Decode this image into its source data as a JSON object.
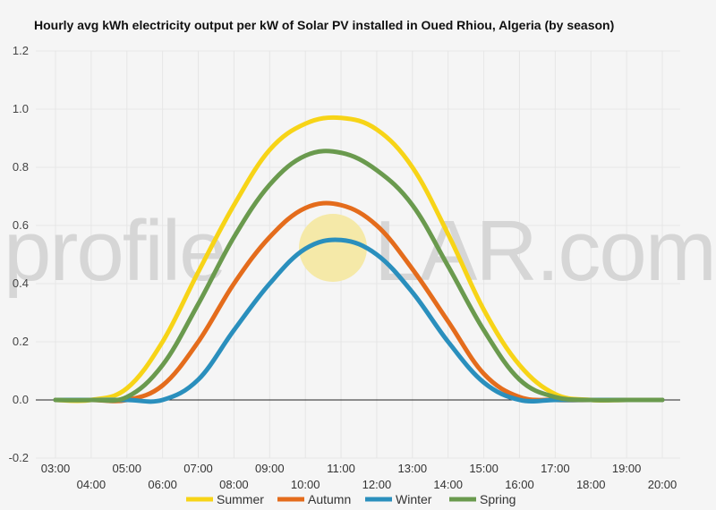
{
  "watermark": {
    "left": "profile",
    "right": "LAR.com",
    "sun_color": "#f5e9a8"
  },
  "chart_data": {
    "type": "line",
    "title": "Hourly avg kWh electricity output per kW of Solar PV installed in Oued Rhiou, Algeria (by season)",
    "xlabel": "",
    "ylabel": "",
    "categories": [
      "03:00",
      "04:00",
      "05:00",
      "06:00",
      "07:00",
      "08:00",
      "09:00",
      "10:00",
      "11:00",
      "12:00",
      "13:00",
      "14:00",
      "15:00",
      "16:00",
      "17:00",
      "18:00",
      "19:00",
      "20:00"
    ],
    "ylim": [
      -0.2,
      1.2
    ],
    "yticks": [
      "-0.2",
      "0.0",
      "0.2",
      "0.4",
      "0.6",
      "0.8",
      "1.0",
      "1.2"
    ],
    "grid": true,
    "legend_position": "bottom",
    "series": [
      {
        "name": "Summer",
        "color": "#f7d417",
        "values": [
          0.0,
          0.0,
          0.04,
          0.2,
          0.44,
          0.67,
          0.86,
          0.95,
          0.97,
          0.93,
          0.8,
          0.57,
          0.31,
          0.12,
          0.02,
          0.0,
          0.0,
          0.0
        ]
      },
      {
        "name": "Autumn",
        "color": "#e46c1c",
        "values": [
          0.0,
          0.0,
          0.0,
          0.05,
          0.2,
          0.4,
          0.56,
          0.66,
          0.67,
          0.6,
          0.45,
          0.27,
          0.09,
          0.01,
          0.0,
          0.0,
          0.0,
          0.0
        ]
      },
      {
        "name": "Winter",
        "color": "#2a8fbd",
        "values": [
          0.0,
          0.0,
          0.0,
          0.0,
          0.07,
          0.24,
          0.4,
          0.52,
          0.55,
          0.5,
          0.37,
          0.2,
          0.06,
          0.0,
          0.0,
          0.0,
          0.0,
          0.0
        ]
      },
      {
        "name": "Spring",
        "color": "#6a9a4e",
        "values": [
          0.0,
          0.0,
          0.01,
          0.12,
          0.33,
          0.56,
          0.74,
          0.84,
          0.85,
          0.79,
          0.67,
          0.46,
          0.24,
          0.07,
          0.01,
          0.0,
          0.0,
          0.0
        ]
      }
    ]
  }
}
